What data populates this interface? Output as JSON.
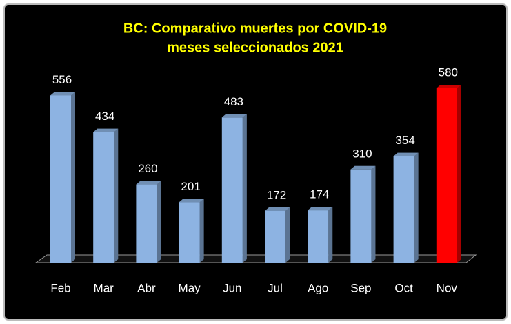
{
  "chart_data": {
    "type": "bar3d",
    "title": "BC: Comparativo muertes por COVID-19",
    "subtitle": "meses seleccionados 2021",
    "categories": [
      "Feb",
      "Mar",
      "Abr",
      "May",
      "Jun",
      "Jul",
      "Ago",
      "Sep",
      "Oct",
      "Nov"
    ],
    "values": [
      556,
      434,
      260,
      201,
      483,
      172,
      174,
      310,
      354,
      580
    ],
    "colors": [
      "#8db3e2",
      "#8db3e2",
      "#8db3e2",
      "#8db3e2",
      "#8db3e2",
      "#8db3e2",
      "#8db3e2",
      "#8db3e2",
      "#8db3e2",
      "#ff0000"
    ]
  }
}
